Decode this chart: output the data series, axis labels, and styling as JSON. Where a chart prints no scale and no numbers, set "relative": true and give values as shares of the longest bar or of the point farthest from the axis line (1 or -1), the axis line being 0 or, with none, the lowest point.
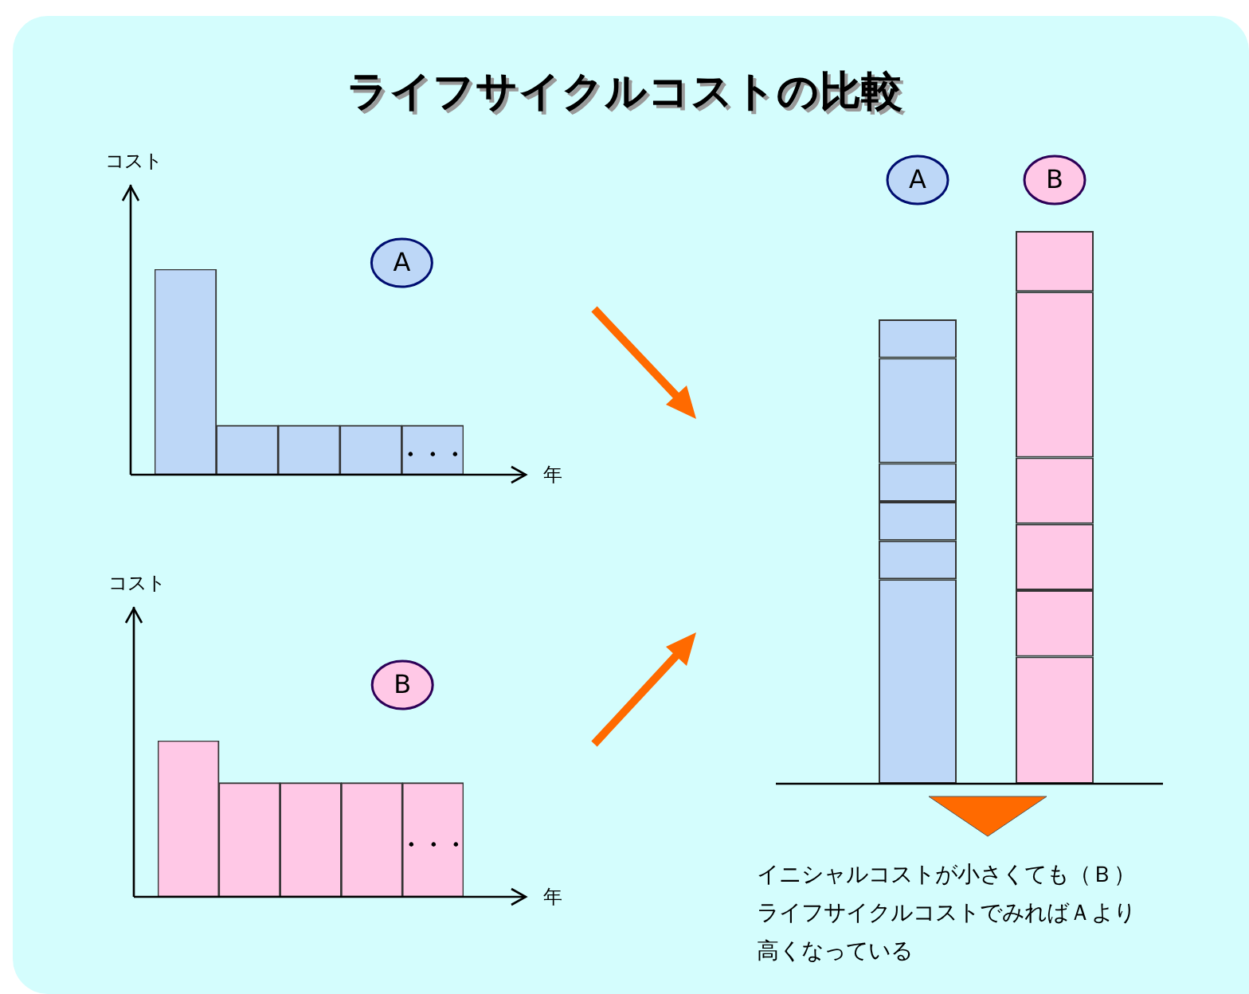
{
  "chart_data": [
    {
      "type": "other",
      "title": "ライフサイクルコストの比較"
    },
    {
      "type": "bar",
      "relative": true,
      "title": "A",
      "ylabel": "コスト",
      "xlabel": "年",
      "categories": [
        null,
        null,
        null,
        null,
        null
      ],
      "values": [
        1,
        0.24,
        0.24,
        0.24,
        0.24
      ],
      "color": "#bdd7f7",
      "annotations": [
        "・・・"
      ]
    },
    {
      "type": "bar",
      "relative": true,
      "title": "B",
      "ylabel": "コスト",
      "xlabel": "年",
      "categories": [
        null,
        null,
        null,
        null,
        null
      ],
      "values": [
        1,
        0.73,
        0.73,
        0.73,
        0.73
      ],
      "color": "#ffc8e6",
      "annotations": [
        "・・・"
      ]
    },
    {
      "type": "bar",
      "relative": true,
      "stacked": true,
      "categories": [
        "A",
        "B"
      ],
      "series": [
        {
          "colors": [
            "#bdd7f7",
            "#ffc8e6"
          ],
          "values": [
            0.37,
            0.23
          ]
        },
        {
          "colors": [
            "#bdd7f7",
            "#ffc8e6"
          ],
          "values": [
            0.07,
            0.12
          ]
        },
        {
          "colors": [
            "#bdd7f7",
            "#ffc8e6"
          ],
          "values": [
            0.07,
            0.12
          ]
        },
        {
          "colors": [
            "#bdd7f7",
            "#ffc8e6"
          ],
          "values": [
            0.07,
            0.12
          ]
        },
        {
          "colors": [
            "#bdd7f7",
            "#ffc8e6"
          ],
          "values": [
            0.19,
            0.3
          ]
        },
        {
          "colors": [
            "#bdd7f7",
            "#ffc8e6"
          ],
          "values": [
            0.07,
            0.11
          ]
        }
      ],
      "annotations": [
        "イニシャルコストが小さくても（Ｂ）ライフサイクルコストでみればＡより高くなっている"
      ]
    }
  ]
}
